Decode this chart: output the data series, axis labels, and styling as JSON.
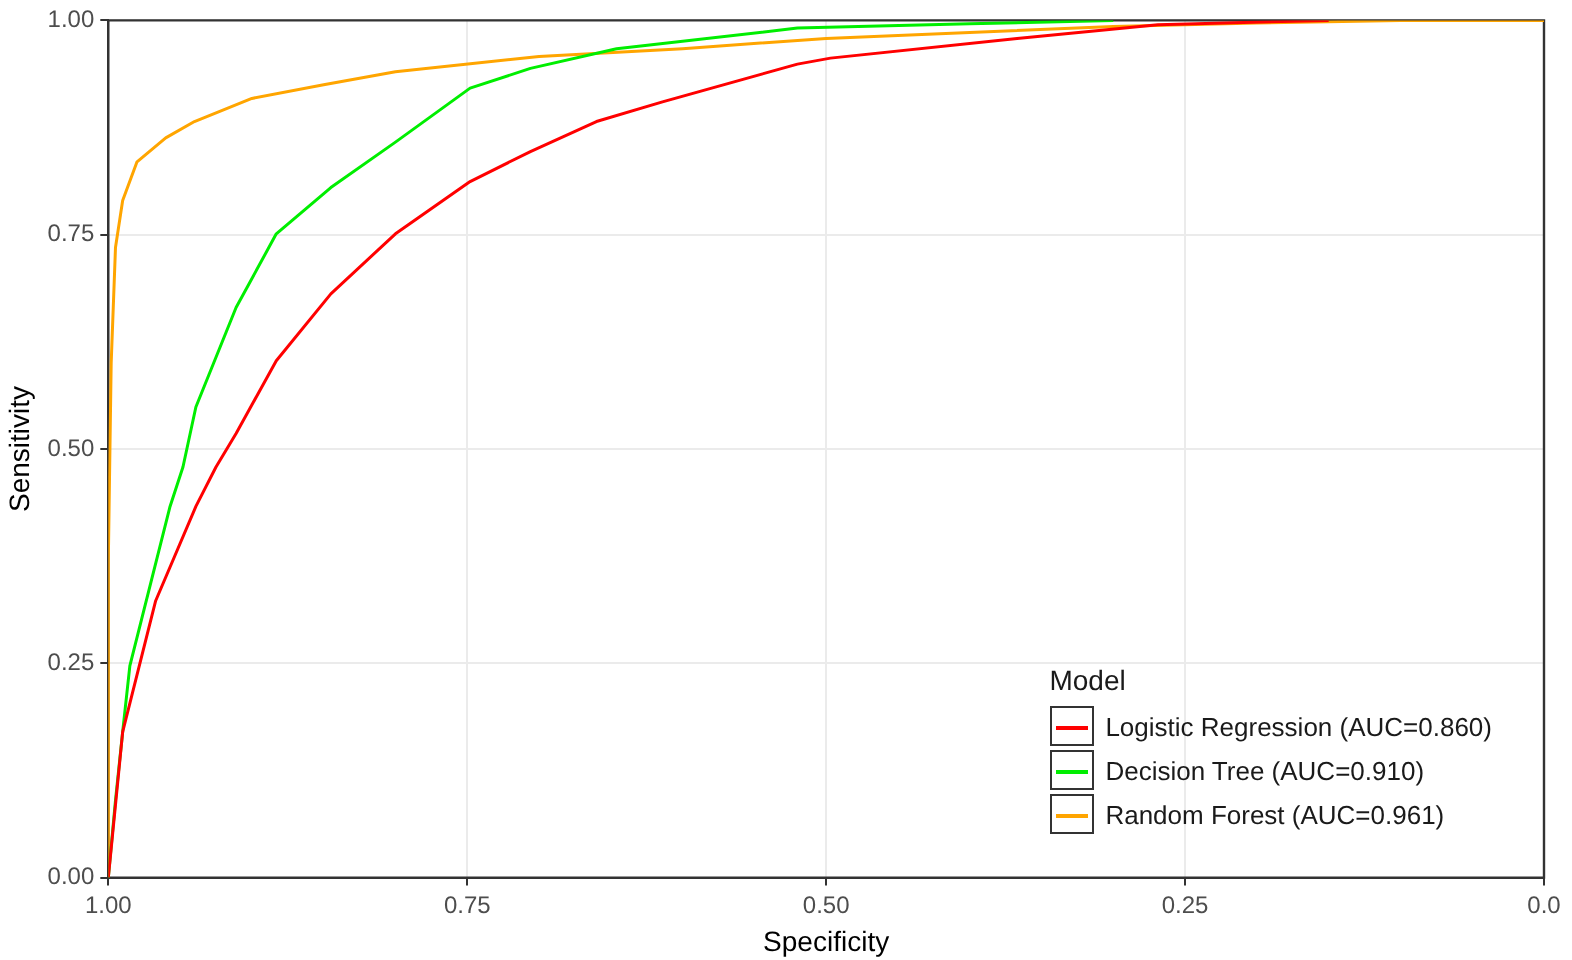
{
  "chart_data": {
    "type": "line",
    "xlabel": "Specificity",
    "ylabel": "Sensitivity",
    "legend_title": "Model",
    "legend": "bottom right",
    "grid": true,
    "marker": "none",
    "line_style": "solid",
    "xlim": [
      1,
      0
    ],
    "ylim": [
      0,
      1
    ],
    "xticks": [
      {
        "value": 1,
        "label": "1.00"
      },
      {
        "value": 0.75,
        "label": "0.75"
      },
      {
        "value": 0.5,
        "label": "0.50"
      },
      {
        "value": 0.25,
        "label": "0.25"
      },
      {
        "value": 0,
        "label": "0.0"
      }
    ],
    "yticks": [
      {
        "value": 0,
        "label": "0.00"
      },
      {
        "value": 0.25,
        "label": "0.25"
      },
      {
        "value": 0.5,
        "label": "0.50"
      },
      {
        "value": 0.75,
        "label": "0.75"
      },
      {
        "value": 1,
        "label": "1.00"
      }
    ],
    "series": [
      {
        "name": "Logistic Regression (AUC=0.860)",
        "color": "#ff0000",
        "x": [
          1,
          0.99,
          0.967,
          0.939,
          0.925,
          0.911,
          0.883,
          0.845,
          0.8,
          0.748,
          0.706,
          0.66,
          0.614,
          0.52,
          0.497,
          0.367,
          0.269,
          0.15
        ],
        "values": [
          0,
          0.17,
          0.323,
          0.433,
          0.479,
          0.518,
          0.603,
          0.681,
          0.751,
          0.812,
          0.847,
          0.882,
          0.905,
          0.949,
          0.956,
          0.979,
          0.995,
          1
        ]
      },
      {
        "name": "Decision Tree (AUC=0.910)",
        "color": "#00ee00",
        "x": [
          1,
          0.995,
          0.99,
          0.985,
          0.957,
          0.948,
          0.939,
          0.911,
          0.883,
          0.845,
          0.8,
          0.748,
          0.706,
          0.646,
          0.52,
          0.4,
          0.3
        ],
        "values": [
          0,
          0.09,
          0.17,
          0.247,
          0.433,
          0.479,
          0.549,
          0.665,
          0.751,
          0.805,
          0.858,
          0.921,
          0.944,
          0.967,
          0.991,
          0.996,
          1
        ]
      },
      {
        "name": "Random Forest (AUC=0.961)",
        "color": "#ffa500",
        "x": [
          1,
          1,
          0.998,
          0.995,
          0.99,
          0.98,
          0.96,
          0.94,
          0.9,
          0.85,
          0.8,
          0.7,
          0.6,
          0.5,
          0.4,
          0.3,
          0.2,
          0.1,
          0
        ],
        "values": [
          0,
          0.37,
          0.6,
          0.735,
          0.79,
          0.835,
          0.863,
          0.882,
          0.909,
          0.925,
          0.94,
          0.958,
          0.967,
          0.979,
          0.986,
          0.993,
          0.997,
          1,
          1
        ]
      }
    ]
  }
}
